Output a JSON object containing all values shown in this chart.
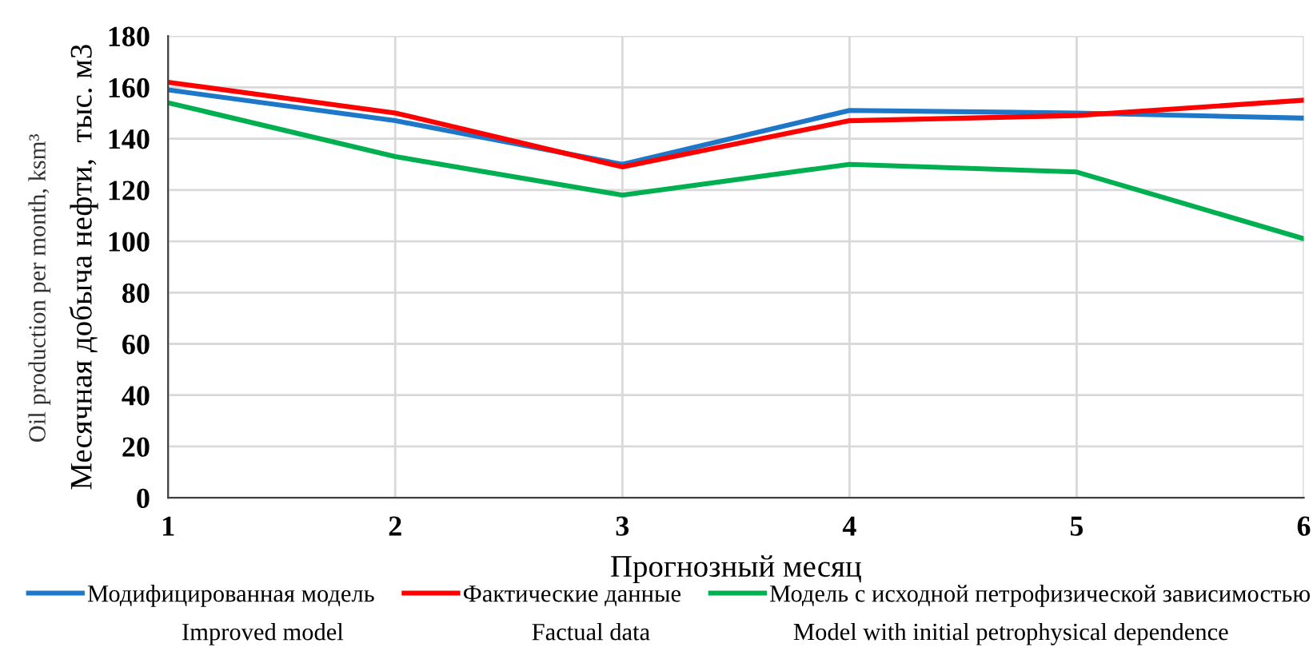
{
  "chart_data": {
    "type": "line",
    "xlabel": "Прогнозный месяц",
    "ylabel": "Месячная добыча нефти,  тыс. м3",
    "x": [
      1,
      2,
      3,
      4,
      5,
      6
    ],
    "xlim": [
      1,
      6
    ],
    "xticks": [
      1,
      2,
      3,
      4,
      5,
      6
    ],
    "ylim": [
      0,
      180
    ],
    "yticks": [
      0,
      20,
      40,
      60,
      80,
      100,
      120,
      140,
      160,
      180
    ],
    "series": [
      {
        "name": "Модифицированная модель",
        "color": "#1f77c8",
        "values": [
          159,
          147,
          130,
          151,
          150,
          148
        ]
      },
      {
        "name": "Фактические данные",
        "color": "#ff0000",
        "values": [
          162,
          150,
          129,
          147,
          149,
          155
        ]
      },
      {
        "name": "Модель с исходной петрофизической зависимостью",
        "color": "#00b050",
        "values": [
          154,
          133,
          118,
          130,
          127,
          101
        ]
      }
    ],
    "annotations": [
      "Oil production per month, ksm³",
      "Improved model",
      "Factual data",
      "Model with initial petrophysical dependence"
    ],
    "grid": true,
    "legend": "bottom",
    "marker": "none",
    "line_style": "solid"
  }
}
